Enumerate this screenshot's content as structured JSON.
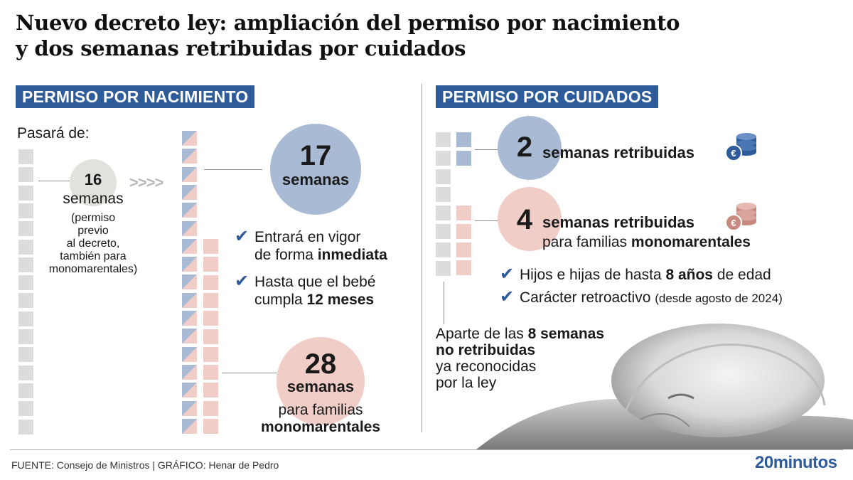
{
  "title": {
    "line1": "Nuevo decreto ley: ampliación del permiso por nacimiento",
    "line2": "y dos semanas retribuidas por cuidados"
  },
  "left": {
    "heading": "PERMISO POR NACIMIENTO",
    "intro": "Pasará de:",
    "from": {
      "number": "16",
      "unit": "semanas",
      "note1": "(permiso",
      "note2": "previo",
      "note3": "al decreto,",
      "note4": "también para",
      "note5": "monomarentales)"
    },
    "arrows": ">>>>",
    "to": {
      "number": "17",
      "unit": "semanas"
    },
    "checks": [
      {
        "line1": "Entrará en vigor",
        "line2_pre": "de forma ",
        "line2_bold": "inmediata"
      },
      {
        "line1": "Hasta que el bebé",
        "line2_pre": "cumpla ",
        "line2_bold": "12 meses"
      }
    ],
    "mono": {
      "number": "28",
      "unit": "semanas",
      "line1": "para familias",
      "line2": "monomarentales"
    },
    "weeks_before": 16,
    "weeks_after": 17,
    "weeks_mono": 28
  },
  "right": {
    "heading": "PERMISO POR CUIDADOS",
    "paid": {
      "number": "2",
      "label": "semanas retribuidas"
    },
    "paid_mono": {
      "number": "4",
      "label": "semanas retribuidas",
      "line2_pre": "para familias ",
      "line2_bold": "monomarentales"
    },
    "checks": [
      {
        "pre": "Hijos e hijas de hasta ",
        "bold": "8 años",
        "post": " de edad",
        "small": ""
      },
      {
        "pre": "Carácter retroactivo ",
        "bold": "",
        "post": "",
        "small": "(desde agosto de 2024)"
      }
    ],
    "aside": {
      "line1_pre": "Aparte de las ",
      "line1_bold": "8 semanas",
      "line2": "no retribuidas",
      "line3": "ya reconocidas",
      "line4": "por la ley"
    },
    "unpaid_weeks": 8,
    "paid_weeks": 2,
    "paid_weeks_mono": 4
  },
  "footer": {
    "source": "FUENTE: Consejo de Ministros  |  GRÁFICO: Henar de Pedro",
    "brand": "20minutos"
  },
  "icons": [
    "euro-coins-blue-icon",
    "euro-coins-pink-icon",
    "check-icon"
  ],
  "colors": {
    "accent": "#2e5b9a",
    "blue": "#a9bad4",
    "pink": "#f0cdc7",
    "grey": "#dedcda"
  }
}
